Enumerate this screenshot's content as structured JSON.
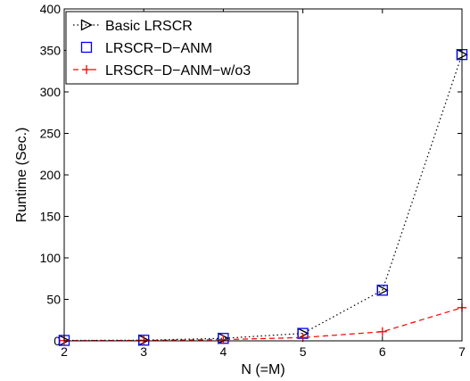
{
  "chart_data": {
    "type": "line",
    "x": [
      2,
      3,
      4,
      5,
      6,
      7
    ],
    "xlabel": "N (=M)",
    "ylabel": "Runtime (Sec.)",
    "xlim": [
      2,
      7
    ],
    "ylim": [
      0,
      400
    ],
    "xticks": [
      2,
      3,
      4,
      5,
      6,
      7
    ],
    "yticks": [
      0,
      50,
      100,
      150,
      200,
      250,
      300,
      350,
      400
    ],
    "grid": false,
    "legend_position": "top-left",
    "series": [
      {
        "name": "Basic LRSCR",
        "values": [
          0.5,
          0.8,
          3,
          9,
          61,
          345
        ],
        "color": "#000000",
        "line": "dotted",
        "marker": "triangle-right"
      },
      {
        "name": "LRSCR−D−ANM",
        "values": [
          0.5,
          0.8,
          3,
          9,
          61,
          345
        ],
        "color": "#0000ff",
        "line": "none",
        "marker": "square"
      },
      {
        "name": "LRSCR−D−ANM−w/o3",
        "values": [
          0.3,
          0.5,
          1.5,
          4,
          11,
          40
        ],
        "color": "#ff0000",
        "line": "dashed",
        "marker": "plus"
      }
    ]
  }
}
